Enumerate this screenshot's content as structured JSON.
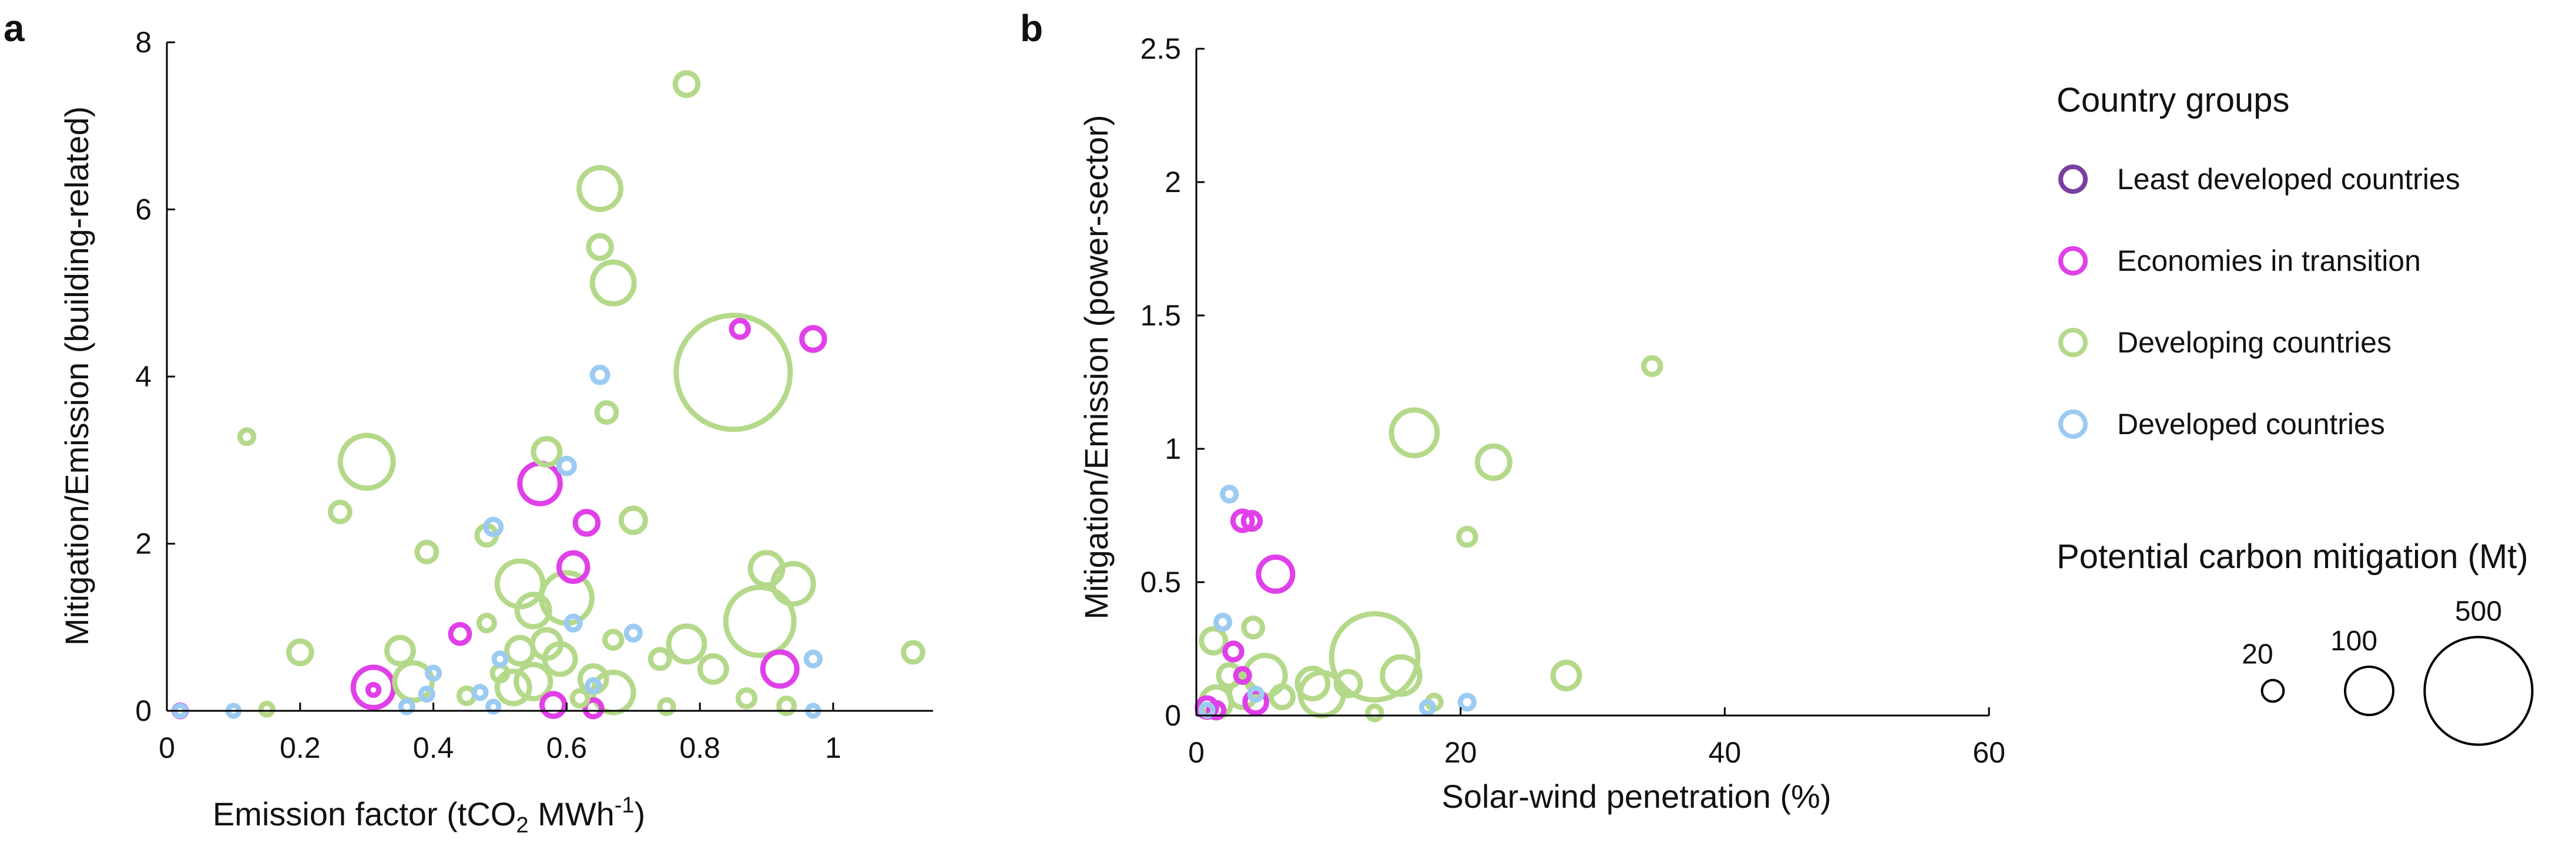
{
  "panels": {
    "a": {
      "label": "a"
    },
    "b": {
      "label": "b"
    }
  },
  "colors": {
    "least_developed": "#7a3fa0",
    "economies_transition": "#e040e8",
    "developing": "#b5d98a",
    "developed": "#9ccbf2"
  },
  "legend": {
    "groups_title": "Country groups",
    "groups": [
      {
        "key": "least_developed",
        "label": "Least developed countries"
      },
      {
        "key": "economies_transition",
        "label": "Economies in transition"
      },
      {
        "key": "developing",
        "label": "Developing countries"
      },
      {
        "key": "developed",
        "label": "Developed countries"
      }
    ],
    "size_title": "Potential carbon mitigation (Mt)",
    "sizes": [
      {
        "label": "20",
        "value": 20
      },
      {
        "label": "100",
        "value": 100
      },
      {
        "label": "500",
        "value": 500
      }
    ]
  },
  "chart_data": [
    {
      "type": "scatter",
      "panel": "a",
      "xlabel_main": "Emission factor (tCO",
      "xlabel_sub": "2",
      "xlabel_unit": " MWh",
      "xlabel_sup": "-1",
      "xlabel_end": ")",
      "ylabel": "Mitigation/Emission (building-related)",
      "xlim": [
        0,
        1.15
      ],
      "ylim": [
        0,
        8
      ],
      "xticks": [
        {
          "v": 0,
          "label": "0"
        },
        {
          "v": 0.2,
          "label": "0.2"
        },
        {
          "v": 0.4,
          "label": "0.4"
        },
        {
          "v": 0.6,
          "label": "0.6"
        },
        {
          "v": 0.8,
          "label": "0.8"
        },
        {
          "v": 1,
          "label": "1"
        }
      ],
      "yticks": [
        {
          "v": 0,
          "label": "0"
        },
        {
          "v": 2,
          "label": "2"
        },
        {
          "v": 4,
          "label": "4"
        },
        {
          "v": 6,
          "label": "6"
        },
        {
          "v": 8,
          "label": "8"
        }
      ],
      "points": [
        {
          "group": "developing",
          "x": 0.85,
          "y": 4.05,
          "size": 560
        },
        {
          "group": "developing",
          "x": 0.78,
          "y": 7.5,
          "size": 22
        },
        {
          "group": "developing",
          "x": 0.65,
          "y": 6.25,
          "size": 75
        },
        {
          "group": "developing",
          "x": 0.65,
          "y": 5.55,
          "size": 22
        },
        {
          "group": "developing",
          "x": 0.67,
          "y": 5.12,
          "size": 75
        },
        {
          "group": "developing",
          "x": 0.3,
          "y": 2.98,
          "size": 120
        },
        {
          "group": "developing",
          "x": 0.12,
          "y": 3.28,
          "size": 8
        },
        {
          "group": "developing",
          "x": 0.57,
          "y": 3.1,
          "size": 30
        },
        {
          "group": "developing",
          "x": 0.66,
          "y": 3.57,
          "size": 16
        },
        {
          "group": "developing",
          "x": 0.26,
          "y": 2.38,
          "size": 16
        },
        {
          "group": "developing",
          "x": 0.39,
          "y": 1.9,
          "size": 16
        },
        {
          "group": "developing",
          "x": 0.48,
          "y": 2.1,
          "size": 16
        },
        {
          "group": "developing",
          "x": 0.7,
          "y": 2.28,
          "size": 25
        },
        {
          "group": "developing",
          "x": 0.53,
          "y": 1.52,
          "size": 90
        },
        {
          "group": "developing",
          "x": 0.6,
          "y": 1.35,
          "size": 110
        },
        {
          "group": "developing",
          "x": 0.55,
          "y": 1.2,
          "size": 45
        },
        {
          "group": "developing",
          "x": 0.9,
          "y": 1.7,
          "size": 45
        },
        {
          "group": "developing",
          "x": 0.94,
          "y": 1.52,
          "size": 70
        },
        {
          "group": "developing",
          "x": 0.89,
          "y": 1.07,
          "size": 200
        },
        {
          "group": "developing",
          "x": 0.2,
          "y": 0.7,
          "size": 22
        },
        {
          "group": "developing",
          "x": 0.35,
          "y": 0.72,
          "size": 30
        },
        {
          "group": "developing",
          "x": 0.37,
          "y": 0.35,
          "size": 60
        },
        {
          "group": "developing",
          "x": 0.78,
          "y": 0.8,
          "size": 55
        },
        {
          "group": "developing",
          "x": 0.82,
          "y": 0.5,
          "size": 30
        },
        {
          "group": "developing",
          "x": 0.57,
          "y": 0.8,
          "size": 35
        },
        {
          "group": "developing",
          "x": 0.59,
          "y": 0.62,
          "size": 40
        },
        {
          "group": "developing",
          "x": 0.53,
          "y": 0.72,
          "size": 30
        },
        {
          "group": "developing",
          "x": 0.55,
          "y": 0.35,
          "size": 50
        },
        {
          "group": "developing",
          "x": 0.52,
          "y": 0.28,
          "size": 45
        },
        {
          "group": "developing",
          "x": 0.64,
          "y": 0.38,
          "size": 30
        },
        {
          "group": "developing",
          "x": 0.67,
          "y": 0.22,
          "size": 70
        },
        {
          "group": "developing",
          "x": 0.48,
          "y": 1.05,
          "size": 10
        },
        {
          "group": "developing",
          "x": 0.67,
          "y": 0.85,
          "size": 12
        },
        {
          "group": "developing",
          "x": 0.74,
          "y": 0.62,
          "size": 15
        },
        {
          "group": "developing",
          "x": 0.87,
          "y": 0.15,
          "size": 12
        },
        {
          "group": "developing",
          "x": 0.93,
          "y": 0.06,
          "size": 10
        },
        {
          "group": "developing",
          "x": 1.12,
          "y": 0.7,
          "size": 16
        },
        {
          "group": "developing",
          "x": 0.45,
          "y": 0.18,
          "size": 10
        },
        {
          "group": "developing",
          "x": 0.5,
          "y": 0.45,
          "size": 10
        },
        {
          "group": "developing",
          "x": 0.62,
          "y": 0.15,
          "size": 10
        },
        {
          "group": "developing",
          "x": 0.15,
          "y": 0.02,
          "size": 6
        },
        {
          "group": "developing",
          "x": 0.75,
          "y": 0.05,
          "size": 8
        },
        {
          "group": "economies_transition",
          "x": 0.86,
          "y": 4.57,
          "size": 12
        },
        {
          "group": "economies_transition",
          "x": 0.97,
          "y": 4.45,
          "size": 22
        },
        {
          "group": "economies_transition",
          "x": 0.56,
          "y": 2.72,
          "size": 70
        },
        {
          "group": "economies_transition",
          "x": 0.63,
          "y": 2.25,
          "size": 22
        },
        {
          "group": "economies_transition",
          "x": 0.61,
          "y": 1.72,
          "size": 35
        },
        {
          "group": "economies_transition",
          "x": 0.44,
          "y": 0.92,
          "size": 15
        },
        {
          "group": "economies_transition",
          "x": 0.92,
          "y": 0.5,
          "size": 50
        },
        {
          "group": "economies_transition",
          "x": 0.31,
          "y": 0.28,
          "size": 70
        },
        {
          "group": "economies_transition",
          "x": 0.31,
          "y": 0.25,
          "size": 5
        },
        {
          "group": "economies_transition",
          "x": 0.58,
          "y": 0.07,
          "size": 22
        },
        {
          "group": "economies_transition",
          "x": 0.64,
          "y": 0.03,
          "size": 12
        },
        {
          "group": "economies_transition",
          "x": 0.02,
          "y": 0.0,
          "size": 6
        },
        {
          "group": "developed",
          "x": 0.65,
          "y": 4.02,
          "size": 10
        },
        {
          "group": "developed",
          "x": 0.6,
          "y": 2.93,
          "size": 10
        },
        {
          "group": "developed",
          "x": 0.49,
          "y": 2.2,
          "size": 10
        },
        {
          "group": "developed",
          "x": 0.61,
          "y": 1.05,
          "size": 8
        },
        {
          "group": "developed",
          "x": 0.7,
          "y": 0.93,
          "size": 8
        },
        {
          "group": "developed",
          "x": 0.5,
          "y": 0.62,
          "size": 6
        },
        {
          "group": "developed",
          "x": 0.97,
          "y": 0.62,
          "size": 8
        },
        {
          "group": "developed",
          "x": 0.4,
          "y": 0.45,
          "size": 6
        },
        {
          "group": "developed",
          "x": 0.64,
          "y": 0.3,
          "size": 6
        },
        {
          "group": "developed",
          "x": 0.47,
          "y": 0.22,
          "size": 6
        },
        {
          "group": "developed",
          "x": 0.39,
          "y": 0.2,
          "size": 6
        },
        {
          "group": "developed",
          "x": 0.36,
          "y": 0.05,
          "size": 6
        },
        {
          "group": "developed",
          "x": 0.49,
          "y": 0.05,
          "size": 5
        },
        {
          "group": "developed",
          "x": 0.97,
          "y": 0.0,
          "size": 5
        },
        {
          "group": "developed",
          "x": 0.02,
          "y": 0.0,
          "size": 5
        },
        {
          "group": "developed",
          "x": 0.1,
          "y": 0.0,
          "size": 5
        }
      ]
    },
    {
      "type": "scatter",
      "panel": "b",
      "xlabel": "Solar-wind penetration (%)",
      "ylabel": "Mitigation/Emission (power-sector)",
      "xlim": [
        0,
        60
      ],
      "ylim": [
        0,
        2.5
      ],
      "xticks": [
        {
          "v": 0,
          "label": "0"
        },
        {
          "v": 20,
          "label": "20"
        },
        {
          "v": 40,
          "label": "40"
        },
        {
          "v": 60,
          "label": "60"
        }
      ],
      "yticks": [
        {
          "v": 0,
          "label": "0"
        },
        {
          "v": 0.5,
          "label": "0.5"
        },
        {
          "v": 1,
          "label": "1"
        },
        {
          "v": 1.5,
          "label": "1.5"
        },
        {
          "v": 2,
          "label": "2"
        },
        {
          "v": 2.5,
          "label": "2.5"
        }
      ],
      "points": [
        {
          "group": "developing",
          "x": 34.5,
          "y": 1.31,
          "size": 12
        },
        {
          "group": "developing",
          "x": 16.5,
          "y": 1.06,
          "size": 90
        },
        {
          "group": "developing",
          "x": 22.5,
          "y": 0.95,
          "size": 45
        },
        {
          "group": "developing",
          "x": 20.5,
          "y": 0.67,
          "size": 12
        },
        {
          "group": "developing",
          "x": 28,
          "y": 0.15,
          "size": 30
        },
        {
          "group": "developing",
          "x": 13.5,
          "y": 0.22,
          "size": 320
        },
        {
          "group": "developing",
          "x": 15.5,
          "y": 0.15,
          "size": 60
        },
        {
          "group": "developing",
          "x": 9.5,
          "y": 0.08,
          "size": 80
        },
        {
          "group": "developing",
          "x": 8.8,
          "y": 0.12,
          "size": 40
        },
        {
          "group": "developing",
          "x": 5.2,
          "y": 0.15,
          "size": 70
        },
        {
          "group": "developing",
          "x": 4.3,
          "y": 0.33,
          "size": 15
        },
        {
          "group": "developing",
          "x": 1.3,
          "y": 0.28,
          "size": 25
        },
        {
          "group": "developing",
          "x": 1.5,
          "y": 0.05,
          "size": 40
        },
        {
          "group": "developing",
          "x": 3.5,
          "y": 0.08,
          "size": 30
        },
        {
          "group": "developing",
          "x": 6.5,
          "y": 0.07,
          "size": 20
        },
        {
          "group": "developing",
          "x": 11.5,
          "y": 0.12,
          "size": 25
        },
        {
          "group": "developing",
          "x": 2.5,
          "y": 0.15,
          "size": 20
        },
        {
          "group": "developing",
          "x": 13.5,
          "y": 0.01,
          "size": 8
        },
        {
          "group": "developing",
          "x": 18,
          "y": 0.05,
          "size": 8
        },
        {
          "group": "economies_transition",
          "x": 3.5,
          "y": 0.73,
          "size": 16
        },
        {
          "group": "economies_transition",
          "x": 4.2,
          "y": 0.73,
          "size": 12
        },
        {
          "group": "economies_transition",
          "x": 6,
          "y": 0.53,
          "size": 50
        },
        {
          "group": "economies_transition",
          "x": 2.8,
          "y": 0.24,
          "size": 12
        },
        {
          "group": "economies_transition",
          "x": 3.5,
          "y": 0.15,
          "size": 8
        },
        {
          "group": "economies_transition",
          "x": 4.5,
          "y": 0.05,
          "size": 20
        },
        {
          "group": "economies_transition",
          "x": 0.8,
          "y": 0.03,
          "size": 16
        },
        {
          "group": "economies_transition",
          "x": 1.5,
          "y": 0.02,
          "size": 10
        },
        {
          "group": "developed",
          "x": 2.5,
          "y": 0.83,
          "size": 8
        },
        {
          "group": "developed",
          "x": 2,
          "y": 0.35,
          "size": 8
        },
        {
          "group": "developed",
          "x": 20.5,
          "y": 0.05,
          "size": 8
        },
        {
          "group": "developed",
          "x": 17.5,
          "y": 0.03,
          "size": 6
        },
        {
          "group": "developed",
          "x": 0.8,
          "y": 0.02,
          "size": 6
        },
        {
          "group": "developed",
          "x": 4.5,
          "y": 0.08,
          "size": 6
        }
      ]
    }
  ]
}
